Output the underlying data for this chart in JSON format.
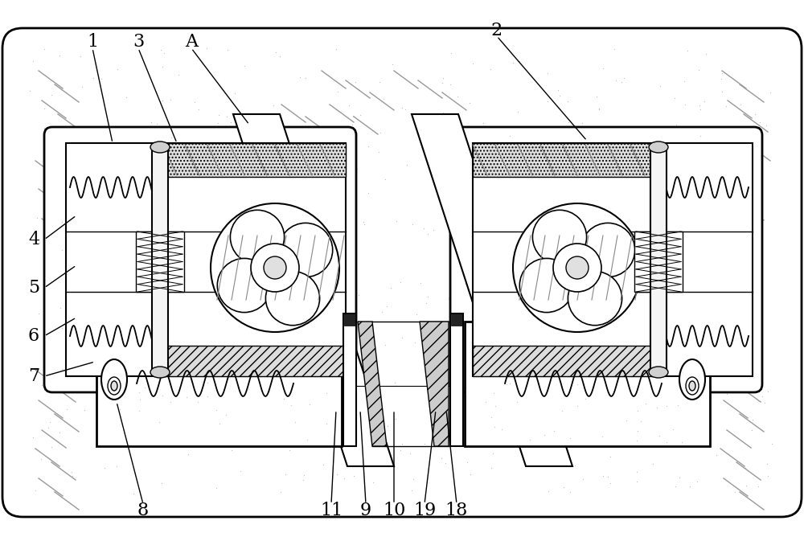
{
  "fig_width": 10.0,
  "fig_height": 6.68,
  "bg_color": "#ffffff",
  "lc": "#000000",
  "labels_top": [
    [
      "1",
      115,
      52
    ],
    [
      "3",
      172,
      52
    ],
    [
      "A",
      238,
      52
    ],
    [
      "2",
      618,
      38
    ]
  ],
  "labels_left": [
    [
      "4",
      42,
      298
    ],
    [
      "5",
      42,
      358
    ],
    [
      "6",
      42,
      418
    ],
    [
      "7",
      42,
      468
    ]
  ],
  "labels_bot": [
    [
      "8",
      178,
      635
    ],
    [
      "11",
      412,
      635
    ],
    [
      "9",
      455,
      635
    ],
    [
      "10",
      490,
      635
    ],
    [
      "19",
      528,
      635
    ],
    [
      "18",
      568,
      635
    ]
  ],
  "leader_lines": [
    [
      115,
      60,
      140,
      178
    ],
    [
      172,
      60,
      220,
      178
    ],
    [
      238,
      60,
      310,
      155
    ],
    [
      618,
      45,
      730,
      175
    ],
    [
      55,
      298,
      95,
      268
    ],
    [
      55,
      358,
      95,
      330
    ],
    [
      55,
      418,
      95,
      395
    ],
    [
      55,
      468,
      118,
      450
    ],
    [
      178,
      627,
      145,
      500
    ],
    [
      412,
      627,
      418,
      510
    ],
    [
      455,
      627,
      448,
      510
    ],
    [
      490,
      627,
      490,
      510
    ],
    [
      528,
      627,
      542,
      510
    ],
    [
      568,
      627,
      555,
      510
    ]
  ]
}
